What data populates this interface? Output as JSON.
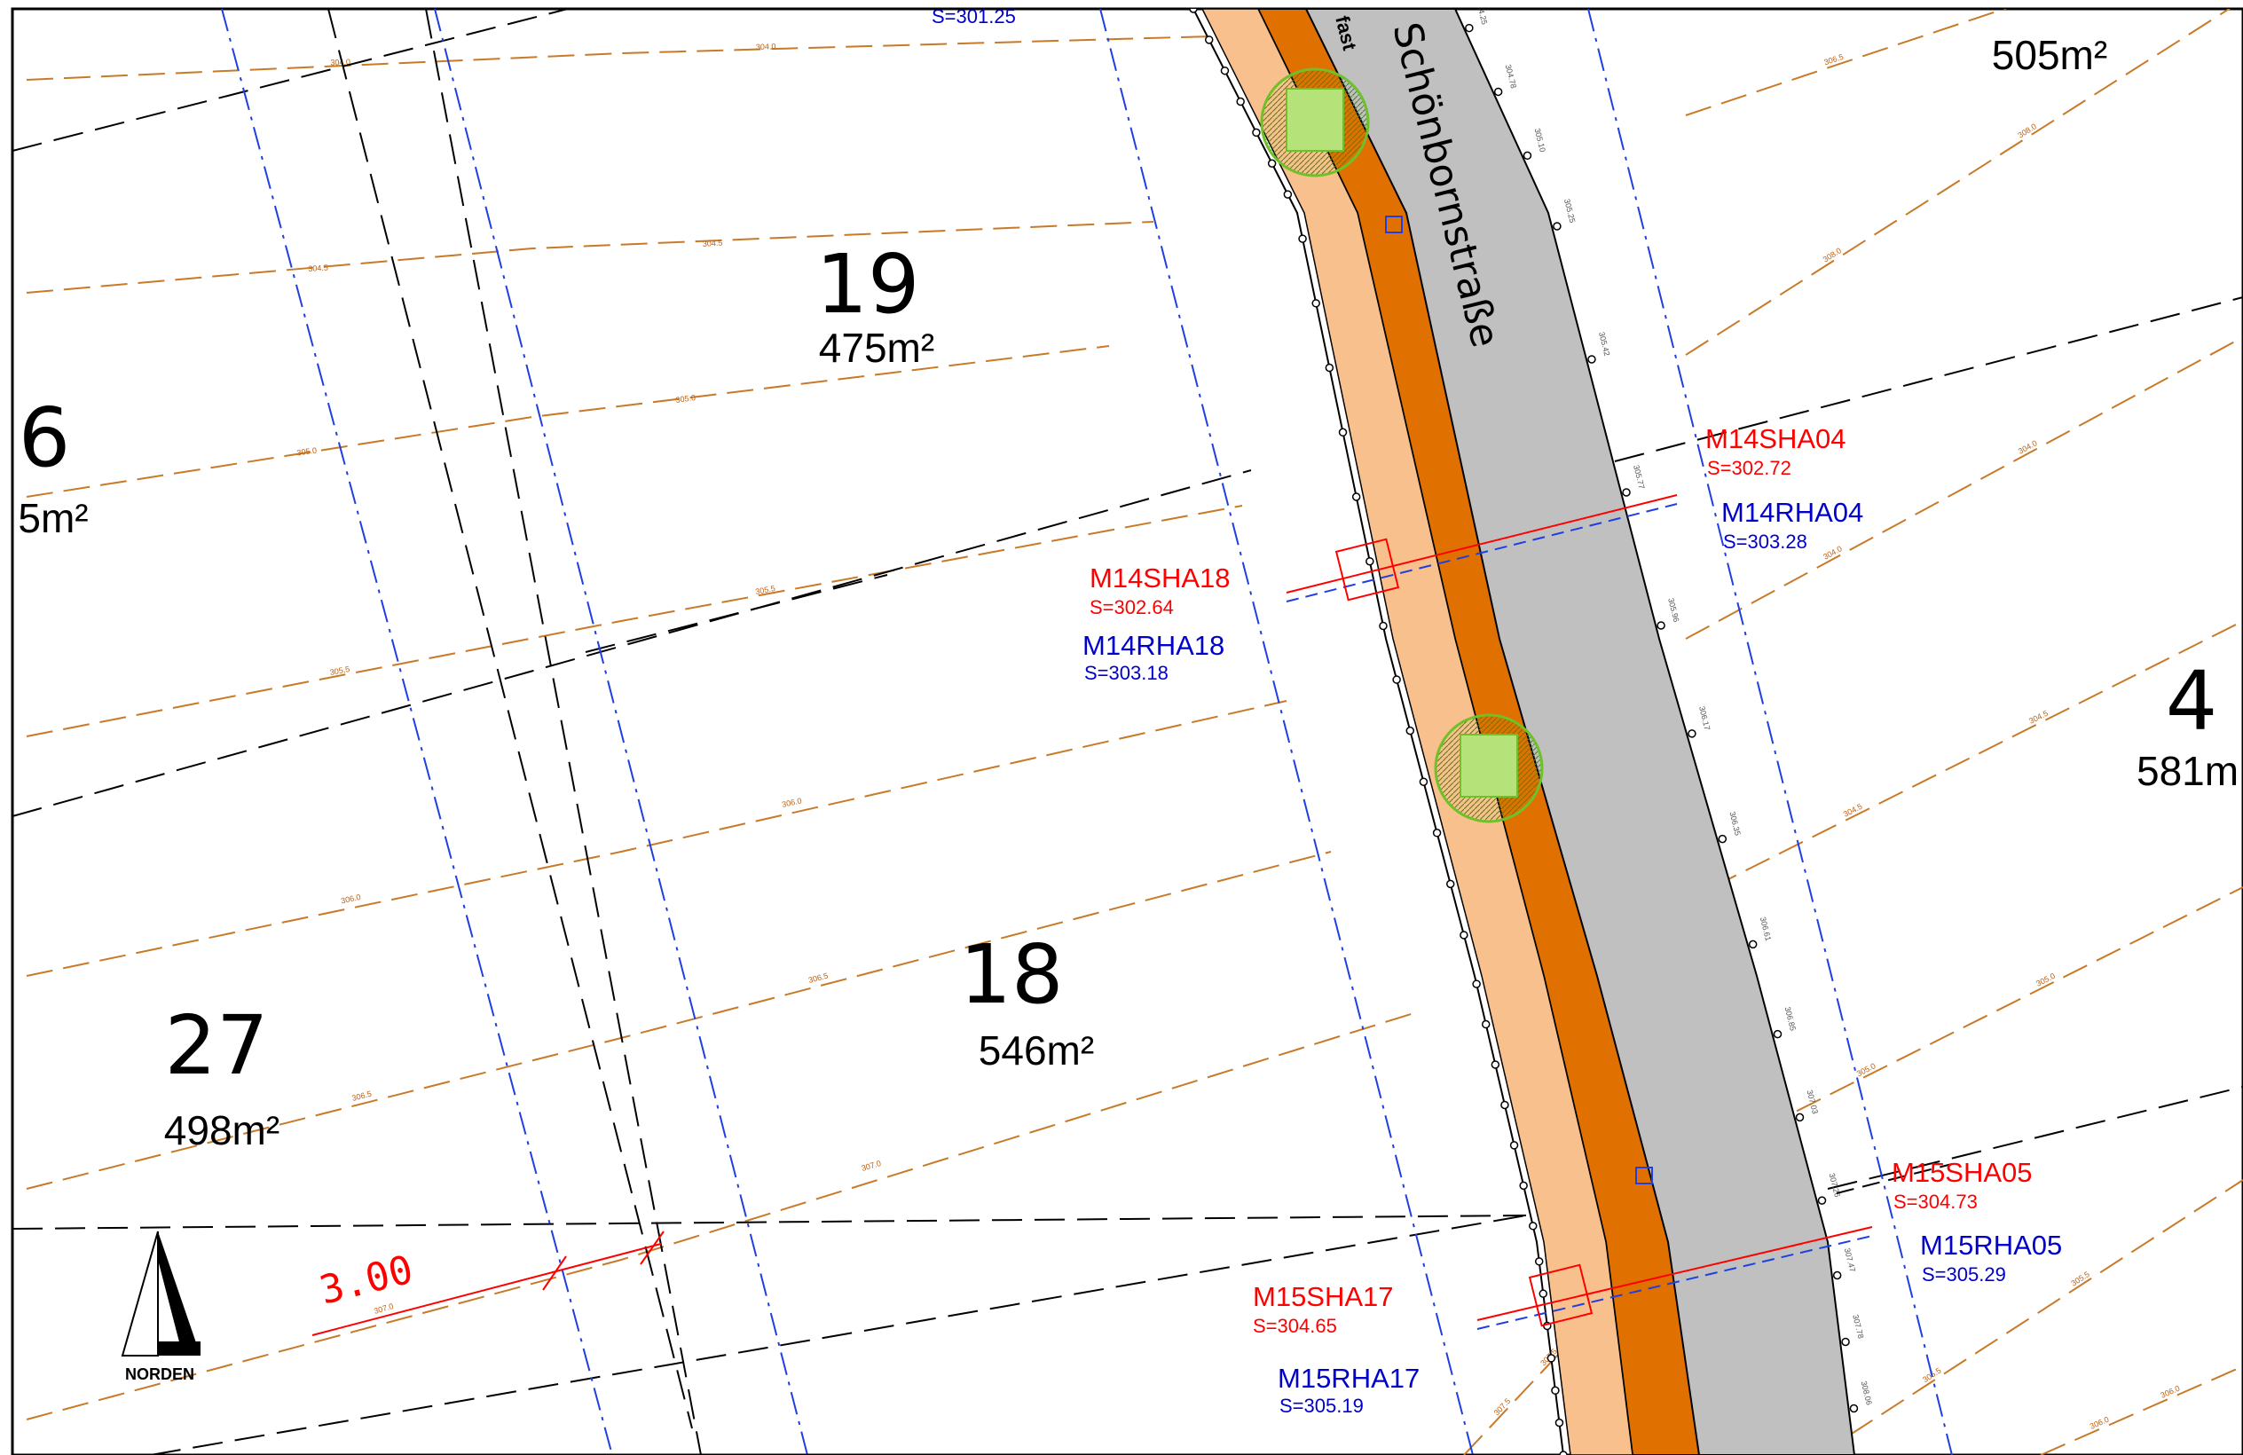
{
  "colors": {
    "contour": "#c87a28",
    "property_line": "#000000",
    "setback_line": "#1f3fe0",
    "road": "#c0c0c0",
    "sidewalk_dark": "#e07000",
    "sidewalk_light": "#f8c08c",
    "shaft_red": "#ff0000",
    "shaft_blue": "#0000cc",
    "tree": "#6fc12a"
  },
  "street": {
    "name": "Schönbornstraße",
    "partial_label": "fast"
  },
  "top_partial_label": "S=301.25",
  "lots": [
    {
      "number": "19",
      "area": "475m²"
    },
    {
      "number": "18",
      "area": "546m²"
    },
    {
      "number": "27",
      "area": "498m²"
    },
    {
      "number": "6",
      "area": "5m²"
    },
    {
      "number": "4",
      "area": "581m"
    },
    {
      "number": "",
      "area": "505m²"
    }
  ],
  "points": [
    {
      "id": "M14SHA04",
      "value": "S=302.72",
      "kind": "SHA"
    },
    {
      "id": "M14RHA04",
      "value": "S=303.28",
      "kind": "RHA"
    },
    {
      "id": "M14SHA18",
      "value": "S=302.64",
      "kind": "SHA"
    },
    {
      "id": "M14RHA18",
      "value": "S=303.18",
      "kind": "RHA"
    },
    {
      "id": "M15SHA05",
      "value": "S=304.73",
      "kind": "SHA"
    },
    {
      "id": "M15RHA05",
      "value": "S=305.29",
      "kind": "RHA"
    },
    {
      "id": "M15SHA17",
      "value": "S=304.65",
      "kind": "SHA"
    },
    {
      "id": "M15RHA17",
      "value": "S=305.19",
      "kind": "RHA"
    }
  ],
  "dimension": {
    "value": "3.00"
  },
  "north_arrow": {
    "label": "NORDEN"
  },
  "contour_labels": [
    "304.0",
    "304.5",
    "305.0",
    "305.5",
    "306.0",
    "306.5",
    "307.0",
    "307.5",
    "308.0"
  ],
  "curb_heights": [
    "304.25",
    "304.78",
    "305.10",
    "305.25",
    "305.42",
    "305.77",
    "305.96",
    "306.17",
    "306.35",
    "306.61",
    "306.85",
    "307.03",
    "307.26",
    "307.47",
    "307.78",
    "308.06"
  ]
}
